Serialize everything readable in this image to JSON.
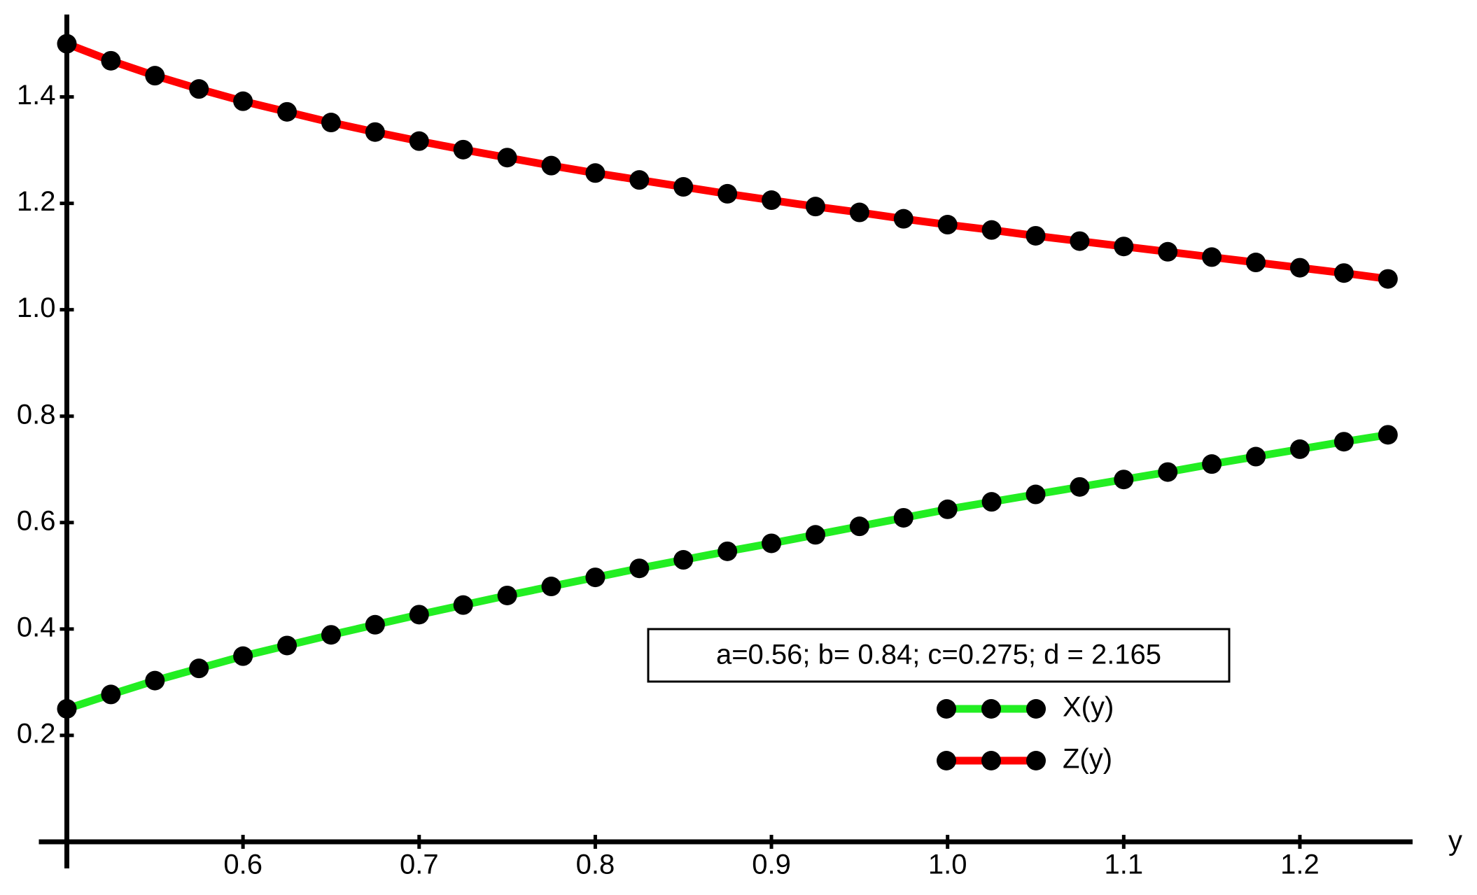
{
  "chart_data": {
    "type": "line",
    "x_label": "y",
    "annotation": "a=0.56; b= 0.84; c=0.275; d = 2.165",
    "x": [
      0.5,
      0.525,
      0.55,
      0.575,
      0.6,
      0.625,
      0.65,
      0.675,
      0.7,
      0.725,
      0.75,
      0.775,
      0.8,
      0.825,
      0.85,
      0.875,
      0.9,
      0.925,
      0.95,
      0.975,
      1.0,
      1.025,
      1.05,
      1.075,
      1.1,
      1.125,
      1.15,
      1.175,
      1.2,
      1.225,
      1.25
    ],
    "series": [
      {
        "name": "X(y)",
        "color": "#22ee22",
        "marker_color": "#000000",
        "values": [
          0.25,
          0.277,
          0.303,
          0.326,
          0.349,
          0.369,
          0.389,
          0.408,
          0.427,
          0.445,
          0.463,
          0.48,
          0.497,
          0.514,
          0.53,
          0.546,
          0.561,
          0.577,
          0.593,
          0.609,
          0.625,
          0.639,
          0.653,
          0.667,
          0.681,
          0.695,
          0.71,
          0.724,
          0.738,
          0.752,
          0.765
        ]
      },
      {
        "name": "Z(y)",
        "color": "#ff0000",
        "marker_color": "#000000",
        "values": [
          1.5,
          1.468,
          1.44,
          1.415,
          1.392,
          1.372,
          1.352,
          1.334,
          1.317,
          1.301,
          1.286,
          1.271,
          1.257,
          1.244,
          1.231,
          1.218,
          1.206,
          1.194,
          1.183,
          1.171,
          1.16,
          1.15,
          1.139,
          1.129,
          1.119,
          1.109,
          1.099,
          1.089,
          1.079,
          1.069,
          1.058
        ]
      }
    ],
    "xlim": [
      0.5,
      1.264
    ],
    "ylim": [
      0,
      1.555
    ],
    "xticks": [
      0.6,
      0.7,
      0.8,
      0.9,
      {
        "value": 1,
        "label": "1.0"
      },
      1.1,
      1.2
    ],
    "yticks": [
      0.2,
      0.4,
      0.6,
      0.8,
      {
        "value": 1,
        "label": "1.0"
      },
      1.2,
      1.4
    ],
    "grid": false
  }
}
